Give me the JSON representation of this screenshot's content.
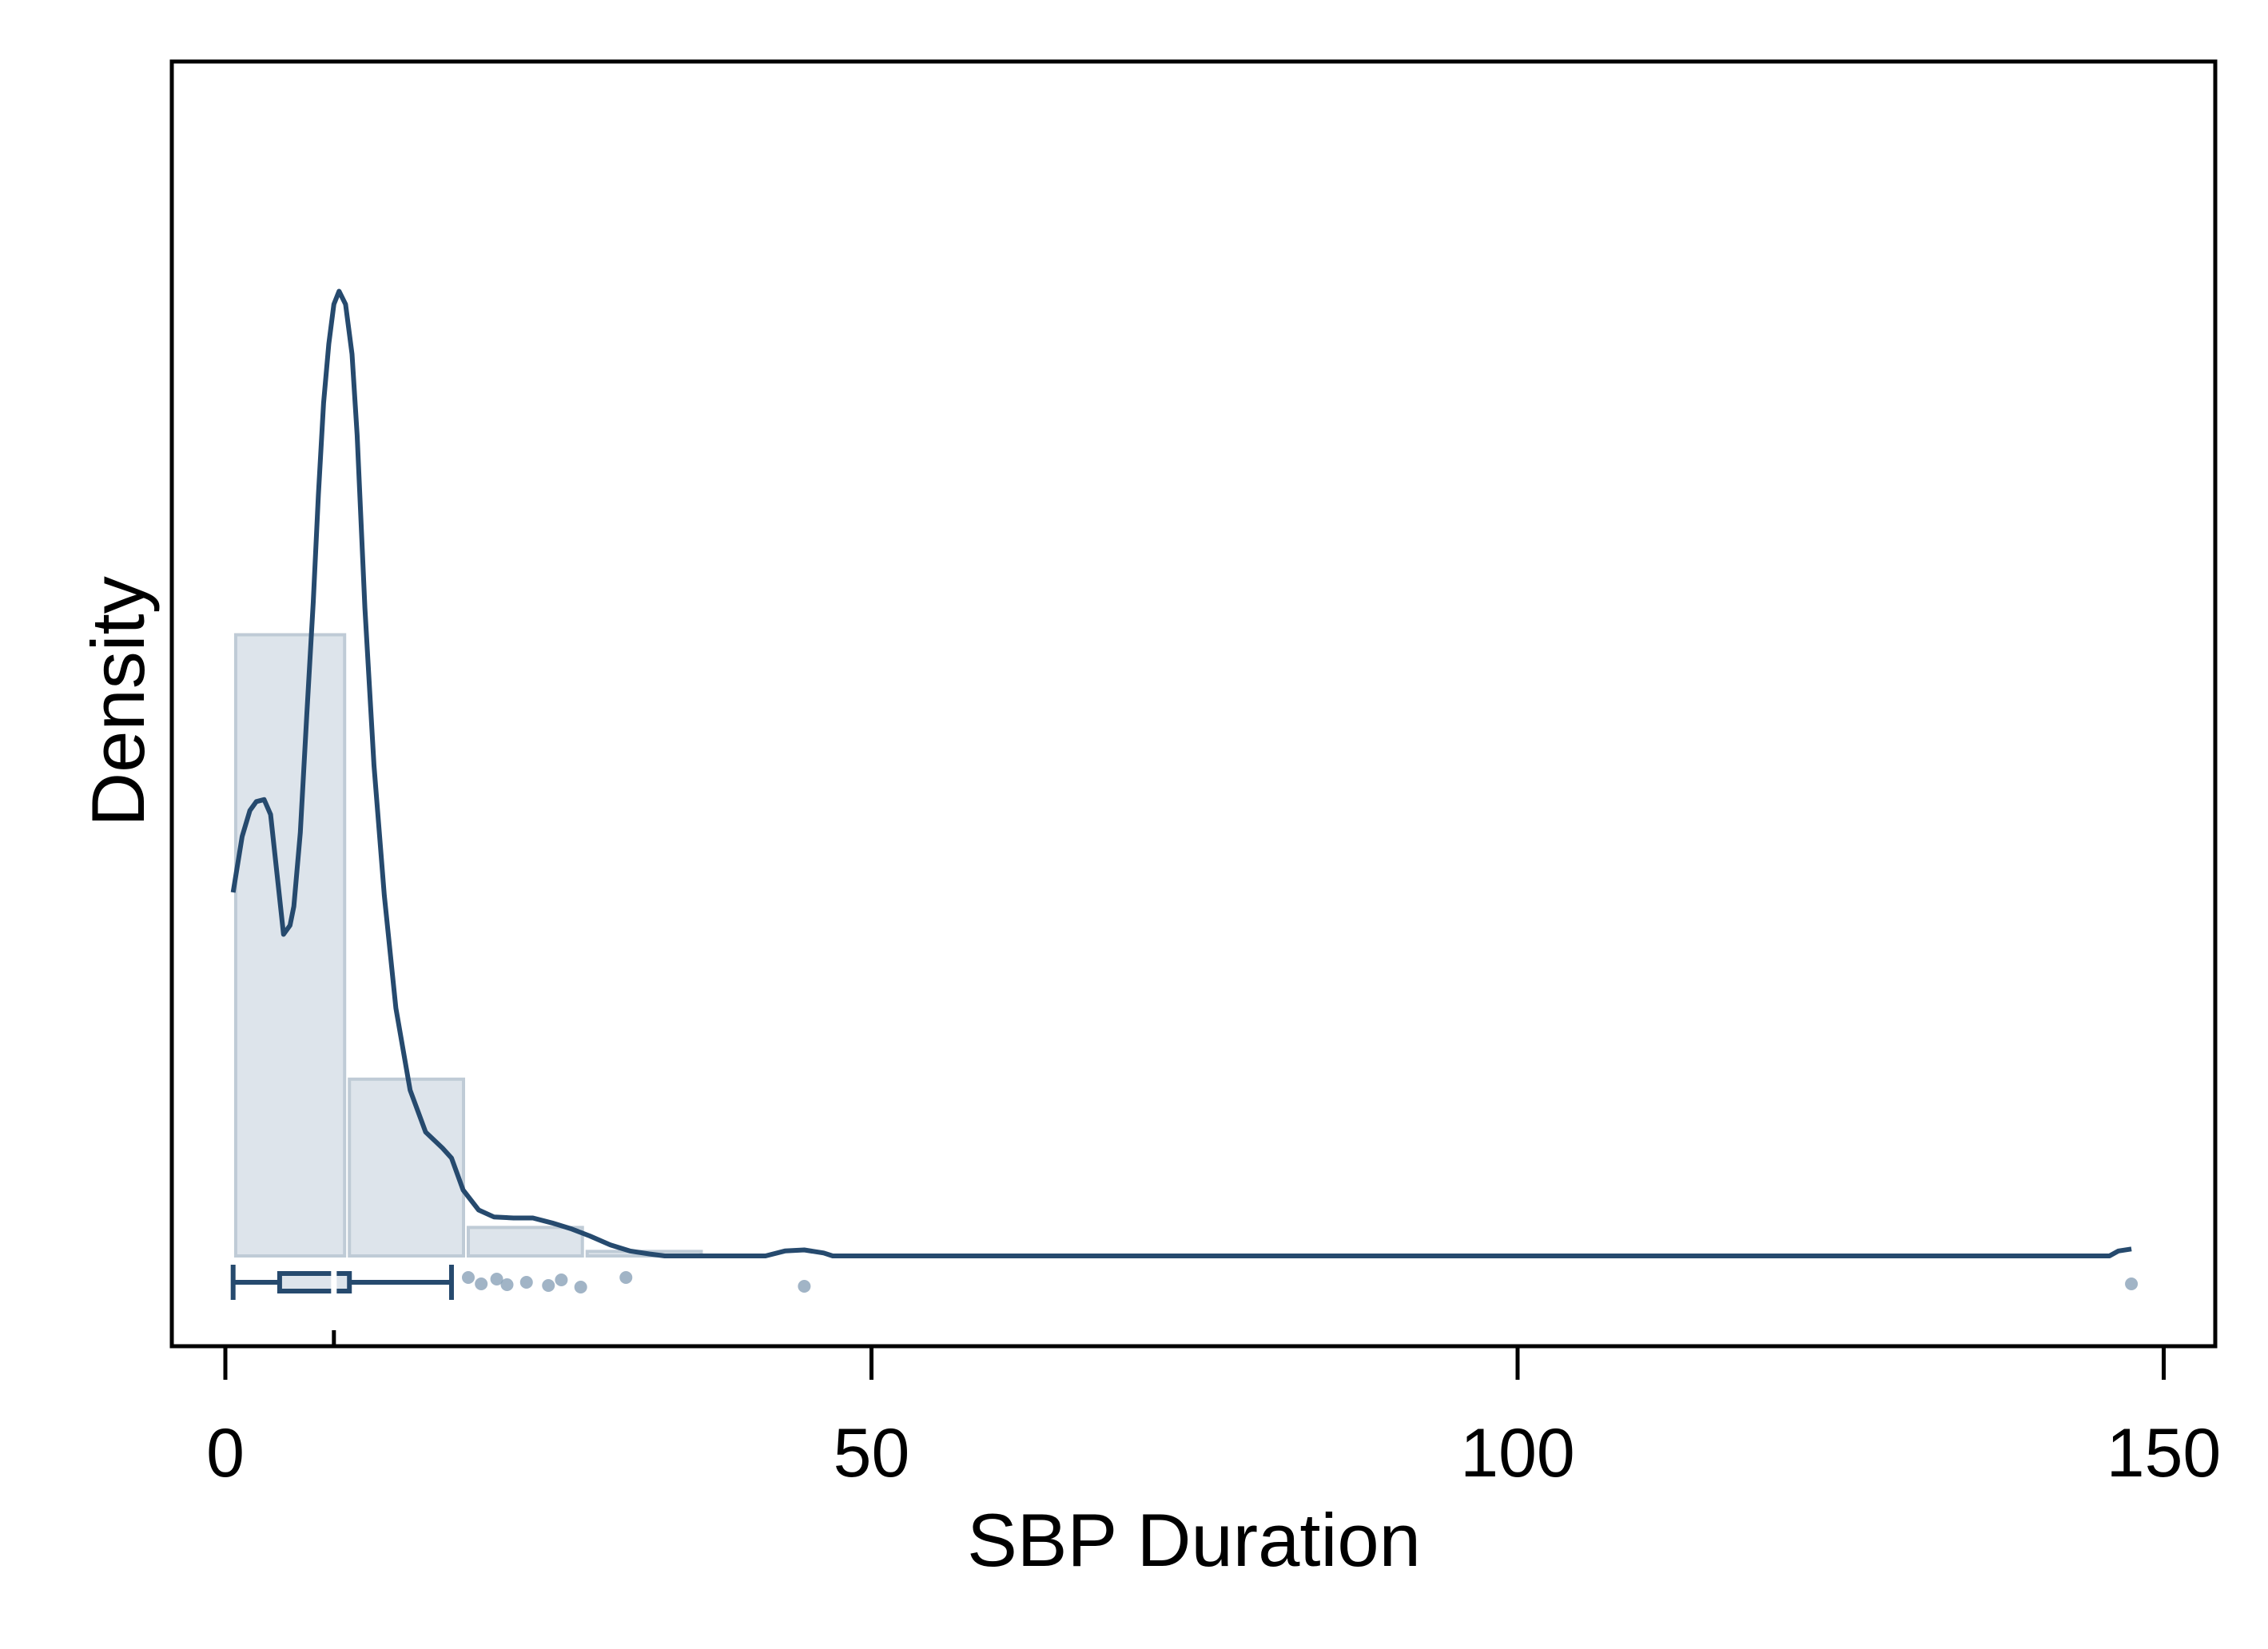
{
  "chart_data": {
    "type": "histogram-density-boxplot",
    "xlabel": "SBP Duration",
    "ylabel": "Density",
    "x_ticks": [
      0,
      50,
      100,
      150
    ],
    "x_tick_labels": [
      "0",
      "50",
      "100",
      "150"
    ],
    "xlim": [
      -4,
      154
    ],
    "ylim": [
      0,
      1.0
    ],
    "grid": false,
    "legend": "none",
    "colors": {
      "line": "#264a6e",
      "bar_fill": "#dde4eb",
      "bar_edge": "#bfcbd6",
      "outlier": "#8aa1b8",
      "frame": "#000000"
    },
    "histogram": {
      "bin_edges": [
        0.8,
        9.6,
        18.8,
        28.0,
        37.2
      ],
      "density": [
        0.622,
        0.177,
        0.0285,
        0.0045
      ]
    },
    "density_curve": {
      "x": [
        0.6,
        1.3,
        1.9,
        2.4,
        3.0,
        3.5,
        4.0,
        4.5,
        5.0,
        5.3,
        5.8,
        6.3,
        6.8,
        7.2,
        7.6,
        8.0,
        8.4,
        8.8,
        9.3,
        9.8,
        10.2,
        10.8,
        11.5,
        12.3,
        13.2,
        14.3,
        15.5,
        16.8,
        17.5,
        18.4,
        19.6,
        20.8,
        22.3,
        23.8,
        25.3,
        26.8,
        28.2,
        29.8,
        31.3,
        32.8,
        34.0,
        41.8,
        43.3,
        44.8,
        46.3,
        47.0,
        140.0,
        145.8,
        146.5,
        147.5
      ],
      "y": [
        0.364,
        0.42,
        0.446,
        0.455,
        0.457,
        0.442,
        0.382,
        0.322,
        0.331,
        0.35,
        0.424,
        0.542,
        0.655,
        0.762,
        0.854,
        0.913,
        0.953,
        0.966,
        0.953,
        0.903,
        0.822,
        0.649,
        0.491,
        0.361,
        0.248,
        0.166,
        0.124,
        0.108,
        0.098,
        0.066,
        0.046,
        0.039,
        0.038,
        0.038,
        0.033,
        0.027,
        0.02,
        0.011,
        0.005,
        0.002,
        0.0,
        0.0,
        0.005,
        0.006,
        0.003,
        0.0,
        0.0,
        0.0,
        0.005,
        0.007
      ]
    },
    "boxplot": {
      "whisker_low": 0.6,
      "q1": 4.2,
      "median": 8.4,
      "q3": 9.6,
      "whisker_high": 17.5
    },
    "outliers": [
      18.8,
      19.8,
      21.0,
      21.8,
      23.3,
      25.0,
      26.0,
      27.5,
      31.0,
      44.8,
      147.5
    ]
  }
}
